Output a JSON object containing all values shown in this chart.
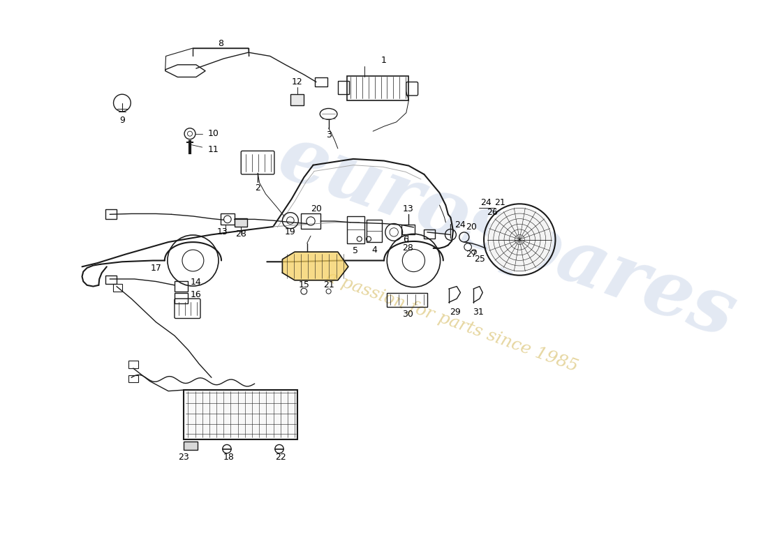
{
  "bg_color": "#ffffff",
  "line_color": "#1a1a1a",
  "lw": 1.0,
  "watermark1": "eurospares",
  "watermark2": "a passion for parts since 1985",
  "wm_color1": "#c8d4e8",
  "wm_color2": "#e0cc88"
}
